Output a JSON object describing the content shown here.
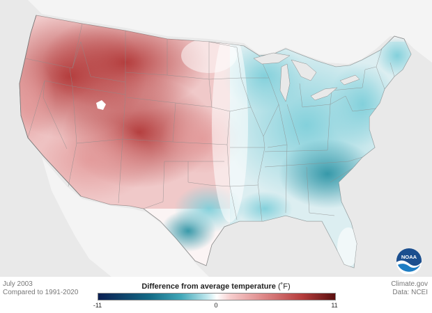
{
  "footer": {
    "date": "July 2003",
    "baseline": "Compared to 1991-2020",
    "source": "Climate.gov",
    "data_source": "Data: NCEI"
  },
  "legend": {
    "title": "Difference from average temperature",
    "unit": "(˚F)",
    "min_label": "-11",
    "mid_label": "0",
    "max_label": "11",
    "min": -11,
    "max": 11
  },
  "logo": {
    "text": "NOAA",
    "icon": "noaa-logo"
  },
  "colors": {
    "warm": "#b53d3d",
    "cool": "#41a7b8",
    "neutral": "#ffffff",
    "land_outside": "#f4f4f4",
    "ocean": "#e9e9e9"
  }
}
